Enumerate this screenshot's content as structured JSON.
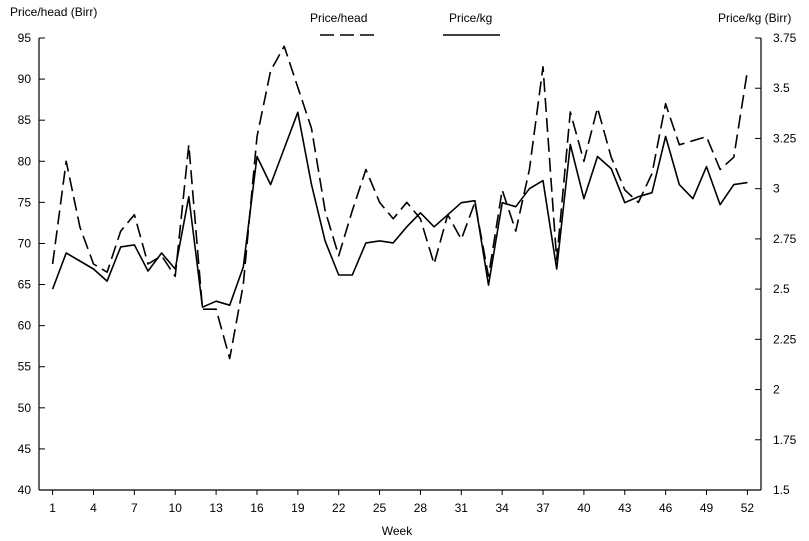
{
  "chart_data": {
    "type": "line",
    "xlabel": "Week",
    "ylabel_left": "Price/head (Birr)",
    "ylabel_right": "Price/kg (Birr)",
    "x_ticks": [
      1,
      4,
      7,
      10,
      13,
      16,
      19,
      22,
      25,
      28,
      31,
      34,
      37,
      40,
      43,
      46,
      49,
      52
    ],
    "x_range": [
      0,
      53
    ],
    "y_left": {
      "range": [
        40,
        95
      ],
      "ticks": [
        40,
        45,
        50,
        55,
        60,
        65,
        70,
        75,
        80,
        85,
        90,
        95
      ]
    },
    "y_right": {
      "range": [
        1.5,
        3.75
      ],
      "ticks": [
        "1.5",
        "1.75",
        "2",
        "2.25",
        "2.5",
        "2.75",
        "3",
        "3.25",
        "3.5",
        "3.75"
      ]
    },
    "legend": "top-center",
    "grid": false,
    "series": [
      {
        "name": "Price/head",
        "axis": "left",
        "dash": "dashed",
        "points": [
          [
            1,
            67.5
          ],
          [
            2,
            80
          ],
          [
            3,
            72
          ],
          [
            4,
            67.5
          ],
          [
            5,
            66.5
          ],
          [
            6,
            71.5
          ],
          [
            7,
            73.5
          ],
          [
            8,
            67.5
          ],
          [
            9,
            68.5
          ],
          [
            10,
            66
          ],
          [
            11,
            82
          ],
          [
            12,
            62
          ],
          [
            13,
            62
          ],
          [
            14,
            56
          ],
          [
            15,
            65
          ],
          [
            16,
            83
          ],
          [
            17,
            91
          ],
          [
            18,
            94
          ],
          [
            19,
            89
          ],
          [
            20,
            84
          ],
          [
            21,
            74
          ],
          [
            22,
            68.5
          ],
          [
            23,
            74
          ],
          [
            24,
            79
          ],
          [
            25,
            75
          ],
          [
            26,
            73
          ],
          [
            27,
            75
          ],
          [
            28,
            73
          ],
          [
            29,
            67.5
          ],
          [
            30,
            73.5
          ],
          [
            31,
            70.5
          ],
          [
            32,
            75
          ],
          [
            33,
            66
          ],
          [
            34,
            76.5
          ],
          [
            35,
            71.5
          ],
          [
            36,
            79
          ],
          [
            37,
            91.5
          ],
          [
            38,
            68
          ],
          [
            39,
            86
          ],
          [
            40,
            80
          ],
          [
            41,
            86.5
          ],
          [
            42,
            80.5
          ],
          [
            43,
            76.5
          ],
          [
            44,
            75
          ],
          [
            45,
            78.5
          ],
          [
            46,
            87
          ],
          [
            47,
            82
          ],
          [
            48,
            82.5
          ],
          [
            49,
            83
          ],
          [
            50,
            79
          ],
          [
            51,
            80.5
          ],
          [
            52,
            91
          ]
        ]
      },
      {
        "name": "Price/kg",
        "axis": "right",
        "dash": "solid",
        "points": [
          [
            1,
            2.5
          ],
          [
            2,
            2.68
          ],
          [
            3,
            2.64
          ],
          [
            4,
            2.6
          ],
          [
            5,
            2.54
          ],
          [
            6,
            2.71
          ],
          [
            7,
            2.72
          ],
          [
            8,
            2.59
          ],
          [
            9,
            2.68
          ],
          [
            10,
            2.6
          ],
          [
            11,
            2.96
          ],
          [
            12,
            2.41
          ],
          [
            13,
            2.44
          ],
          [
            14,
            2.42
          ],
          [
            15,
            2.61
          ],
          [
            16,
            3.16
          ],
          [
            17,
            3.02
          ],
          [
            18,
            3.2
          ],
          [
            19,
            3.38
          ],
          [
            20,
            3.02
          ],
          [
            21,
            2.74
          ],
          [
            22,
            2.57
          ],
          [
            23,
            2.57
          ],
          [
            24,
            2.73
          ],
          [
            25,
            2.74
          ],
          [
            26,
            2.73
          ],
          [
            27,
            2.81
          ],
          [
            28,
            2.88
          ],
          [
            29,
            2.81
          ],
          [
            30,
            2.87
          ],
          [
            31,
            2.93
          ],
          [
            32,
            2.94
          ],
          [
            33,
            2.52
          ],
          [
            34,
            2.93
          ],
          [
            35,
            2.91
          ],
          [
            36,
            3.0
          ],
          [
            37,
            3.04
          ],
          [
            38,
            2.6
          ],
          [
            39,
            3.22
          ],
          [
            40,
            2.95
          ],
          [
            41,
            3.16
          ],
          [
            42,
            3.1
          ],
          [
            43,
            2.93
          ],
          [
            44,
            2.96
          ],
          [
            45,
            2.98
          ],
          [
            46,
            3.26
          ],
          [
            47,
            3.02
          ],
          [
            48,
            2.95
          ],
          [
            49,
            3.11
          ],
          [
            50,
            2.92
          ],
          [
            51,
            3.02
          ],
          [
            52,
            3.03
          ]
        ]
      }
    ]
  }
}
